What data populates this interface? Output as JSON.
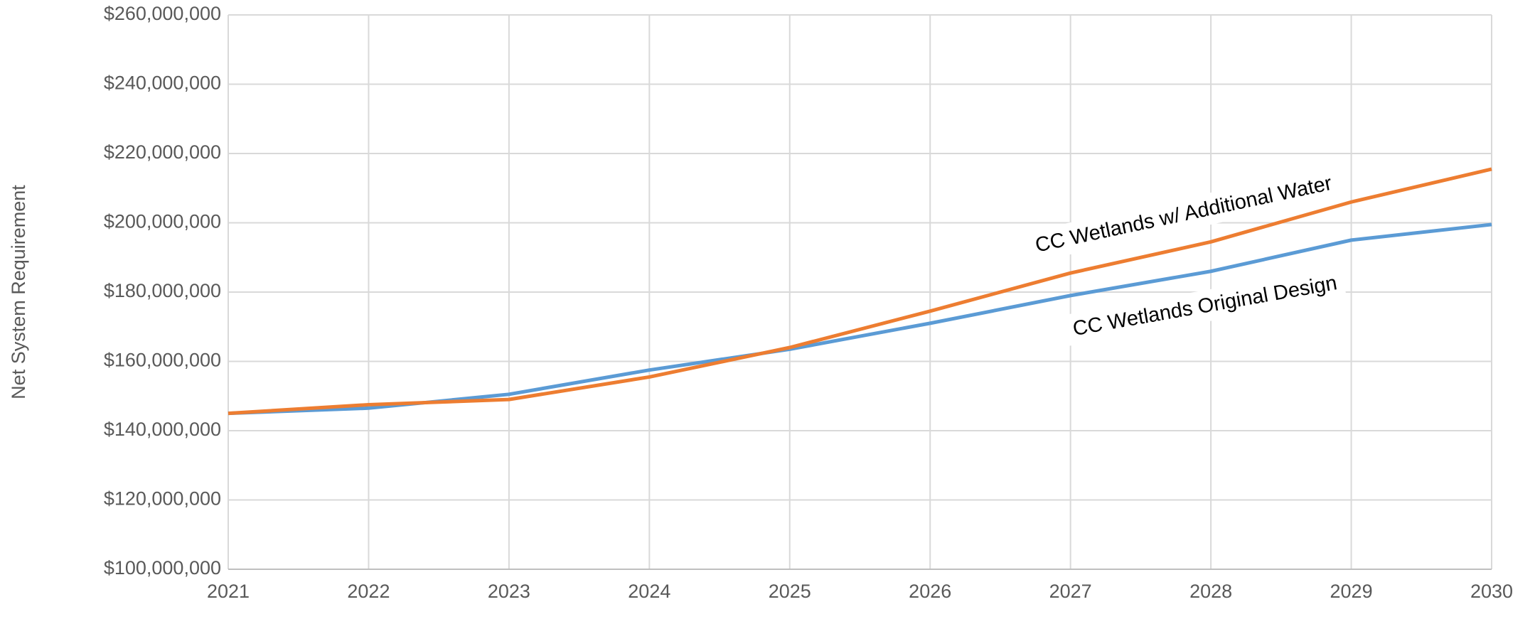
{
  "chart_data": {
    "type": "line",
    "ylabel": "Net System Requirement",
    "x": [
      2021,
      2022,
      2023,
      2024,
      2025,
      2026,
      2027,
      2028,
      2029,
      2030
    ],
    "xlim": [
      2021,
      2030
    ],
    "xticks": [
      2021,
      2022,
      2023,
      2024,
      2025,
      2026,
      2027,
      2028,
      2029,
      2030
    ],
    "ylim": [
      100000000,
      260000000
    ],
    "yticks": [
      {
        "value": 100000000,
        "label": "$100,000,000"
      },
      {
        "value": 120000000,
        "label": "$120,000,000"
      },
      {
        "value": 140000000,
        "label": "$140,000,000"
      },
      {
        "value": 160000000,
        "label": "$160,000,000"
      },
      {
        "value": 180000000,
        "label": "$180,000,000"
      },
      {
        "value": 200000000,
        "label": "$200,000,000"
      },
      {
        "value": 220000000,
        "label": "$220,000,000"
      },
      {
        "value": 240000000,
        "label": "$240,000,000"
      },
      {
        "value": 260000000,
        "label": "$260,000,000"
      }
    ],
    "grid": true,
    "series": [
      {
        "name": "CC Wetlands Original Design",
        "color": "#5b9bd5",
        "values": [
          145000000,
          146500000,
          150500000,
          157500000,
          163500000,
          171000000,
          179000000,
          186000000,
          195000000,
          199500000
        ]
      },
      {
        "name": "CC Wetlands w/ Additional Water",
        "color": "#ed7d31",
        "values": [
          145000000,
          147500000,
          149000000,
          155500000,
          164000000,
          174500000,
          185500000,
          194500000,
          206000000,
          215500000
        ]
      }
    ]
  }
}
